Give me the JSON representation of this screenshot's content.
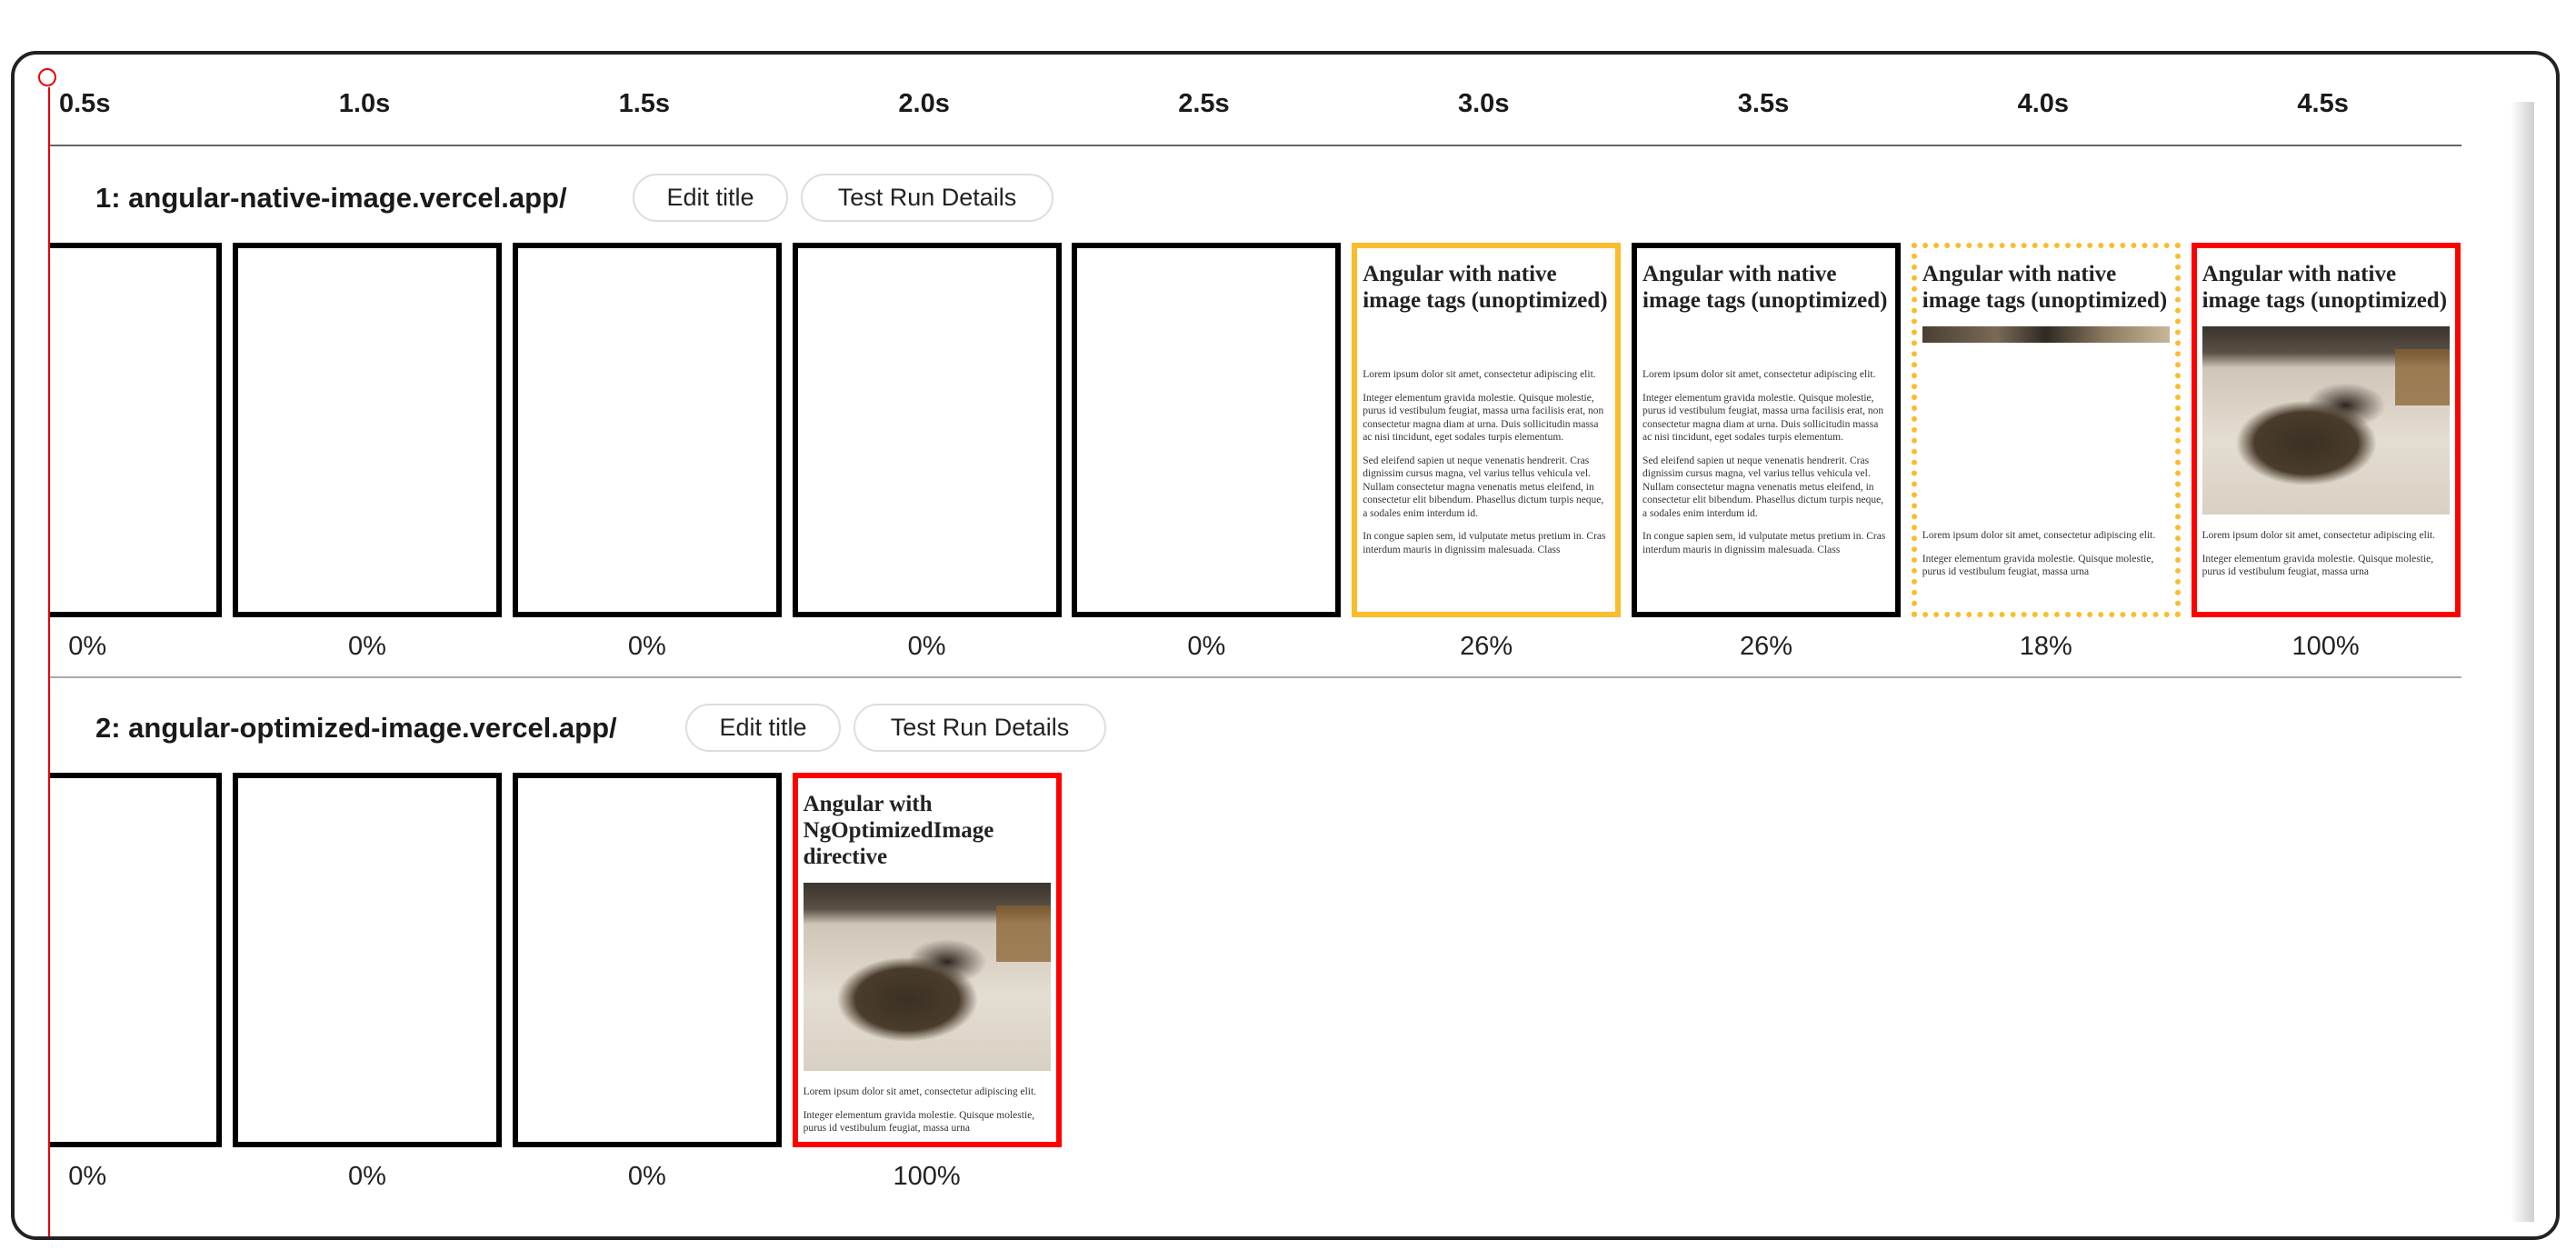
{
  "timeline": {
    "ticks": [
      "0.5s",
      "1.0s",
      "1.5s",
      "2.0s",
      "2.5s",
      "3.0s",
      "3.5s",
      "4.0s",
      "4.5s"
    ],
    "colors": {
      "marker": "#ee0000",
      "visual_change": "#fbbc2c",
      "final": "#ff0000",
      "default": "#000000"
    }
  },
  "rows": [
    {
      "title": "1: angular-native-image.vercel.app/",
      "edit_title_label": "Edit title",
      "details_label": "Test Run Details",
      "frames": [
        {
          "pct": "0%",
          "border": "black",
          "blank": true
        },
        {
          "pct": "0%",
          "border": "black",
          "blank": true
        },
        {
          "pct": "0%",
          "border": "black",
          "blank": true
        },
        {
          "pct": "0%",
          "border": "black",
          "blank": true
        },
        {
          "pct": "0%",
          "border": "black",
          "blank": true
        },
        {
          "pct": "26%",
          "border": "yellow",
          "image": "none",
          "heading": "Angular with native image tags (unoptimized)",
          "paragraphs": [
            "Lorem ipsum dolor sit amet, consectetur adipiscing elit.",
            "Integer elementum gravida molestie. Quisque molestie, purus id vestibulum feugiat, massa urna facilisis erat, non consectetur magna diam at urna. Duis sollicitudin massa ac nisi tincidunt, eget sodales turpis elementum.",
            "Sed eleifend sapien ut neque venenatis hendrerit. Cras dignissim cursus magna, vel varius tellus vehicula vel. Nullam consectetur magna venenatis metus eleifend, in consectetur elit bibendum. Phasellus dictum turpis neque, a sodales enim interdum id.",
            "In congue sapien sem, id vulputate metus pretium in. Cras interdum mauris in dignissim malesuada. Class"
          ]
        },
        {
          "pct": "26%",
          "border": "black",
          "image": "none",
          "heading": "Angular with native image tags (unoptimized)",
          "paragraphs": [
            "Lorem ipsum dolor sit amet, consectetur adipiscing elit.",
            "Integer elementum gravida molestie. Quisque molestie, purus id vestibulum feugiat, massa urna facilisis erat, non consectetur magna diam at urna. Duis sollicitudin massa ac nisi tincidunt, eget sodales turpis elementum.",
            "Sed eleifend sapien ut neque venenatis hendrerit. Cras dignissim cursus magna, vel varius tellus vehicula vel. Nullam consectetur magna venenatis metus eleifend, in consectetur elit bibendum. Phasellus dictum turpis neque, a sodales enim interdum id.",
            "In congue sapien sem, id vulputate metus pretium in. Cras interdum mauris in dignissim malesuada. Class"
          ]
        },
        {
          "pct": "18%",
          "border": "dotted-yellow",
          "image": "partial",
          "heading": "Angular with native image tags (unoptimized)",
          "paragraphs": [
            "Lorem ipsum dolor sit amet, consectetur adipiscing elit.",
            "Integer elementum gravida molestie. Quisque molestie, purus id vestibulum feugiat, massa urna"
          ]
        },
        {
          "pct": "100%",
          "border": "red",
          "image": "full",
          "heading": "Angular with native image tags (unoptimized)",
          "paragraphs": [
            "Lorem ipsum dolor sit amet, consectetur adipiscing elit.",
            "Integer elementum gravida molestie. Quisque molestie, purus id vestibulum feugiat, massa urna"
          ]
        }
      ]
    },
    {
      "title": "2: angular-optimized-image.vercel.app/",
      "edit_title_label": "Edit title",
      "details_label": "Test Run Details",
      "frames": [
        {
          "pct": "0%",
          "border": "black",
          "blank": true
        },
        {
          "pct": "0%",
          "border": "black",
          "blank": true
        },
        {
          "pct": "0%",
          "border": "black",
          "blank": true
        },
        {
          "pct": "100%",
          "border": "red",
          "image": "full",
          "heading": "Angular with NgOptimizedImage directive",
          "paragraphs": [
            "Lorem ipsum dolor sit amet, consectetur adipiscing elit.",
            "Integer elementum gravida molestie. Quisque molestie, purus id vestibulum feugiat, massa urna"
          ]
        }
      ]
    }
  ]
}
